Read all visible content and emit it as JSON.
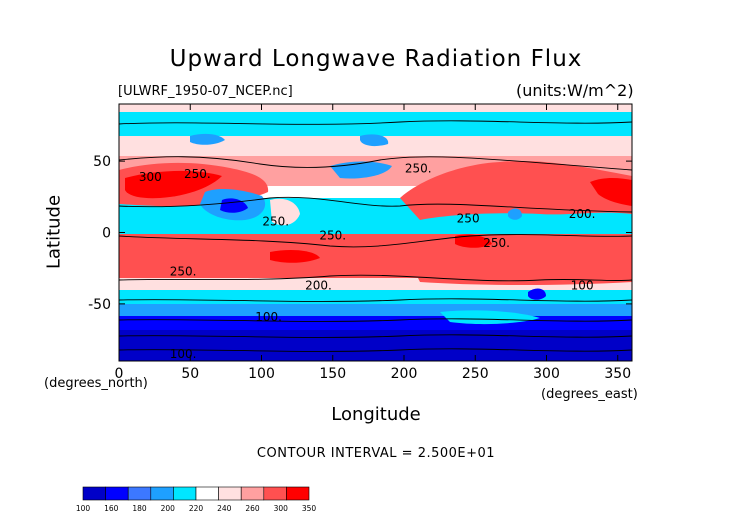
{
  "chart_data": {
    "type": "heatmap",
    "title": "Upward Longwave Radiation Flux",
    "dataset_label": "[ULWRF_1950-07_NCEP.nc]",
    "units_label": "(units:W/m^2)",
    "xlabel": "Longitude",
    "xlabel_units": "(degrees_east)",
    "ylabel": "Latitude",
    "ylabel_units": "(degrees_north)",
    "xlim": [
      0,
      360
    ],
    "ylim": [
      -90,
      90
    ],
    "x_ticks": [
      "0",
      "50",
      "100",
      "150",
      "200",
      "250",
      "300",
      "350"
    ],
    "y_ticks": [
      "50",
      "0",
      "-50"
    ],
    "contour_interval_label": "CONTOUR INTERVAL = 2.500E+01",
    "contour_labels": [
      "300",
      "250.",
      "250.",
      "250.",
      "250",
      "250.",
      "250.",
      "250.",
      "200.",
      "200.",
      "100",
      "100.",
      "100."
    ],
    "colorbar": {
      "levels": [
        "100",
        "160",
        "180",
        "200",
        "220",
        "240",
        "260",
        "300",
        "350"
      ],
      "colors": [
        "#0000c8",
        "#0000ff",
        "#3c78ff",
        "#1ea0ff",
        "#00e6ff",
        "#ffffff",
        "#ffe0e0",
        "#ffa0a0",
        "#ff5050",
        "#ff0000"
      ]
    },
    "approx_field_by_latitude": [
      {
        "lat": 85,
        "value": 230
      },
      {
        "lat": 70,
        "value": 225
      },
      {
        "lat": 55,
        "value": 245
      },
      {
        "lat": 40,
        "value": 265
      },
      {
        "lat": 25,
        "value": 290
      },
      {
        "lat": 10,
        "value": 230
      },
      {
        "lat": 0,
        "value": 235
      },
      {
        "lat": -15,
        "value": 270
      },
      {
        "lat": -25,
        "value": 265
      },
      {
        "lat": -40,
        "value": 215
      },
      {
        "lat": -50,
        "value": 190
      },
      {
        "lat": -60,
        "value": 170
      },
      {
        "lat": -75,
        "value": 120
      },
      {
        "lat": -88,
        "value": 100
      }
    ]
  }
}
